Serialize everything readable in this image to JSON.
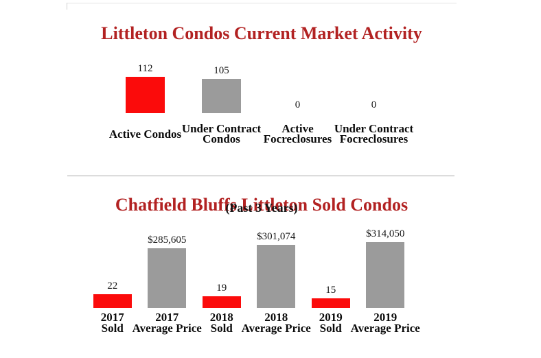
{
  "page": {
    "background": "#ffffff"
  },
  "dividers": {
    "top_line_color": "#e4e4e4",
    "section_line_color": "#a6a6a6"
  },
  "chart_data": [
    {
      "type": "bar",
      "title": "Littleton Condos Current Market Activity",
      "title_color": "#b22222",
      "categories": [
        "Active Condos",
        "Under Contract Condos",
        "Active Focreclosures",
        "Under Contract Focreclosures"
      ],
      "category_lines": [
        [
          "Active Condos"
        ],
        [
          "Under Contract",
          "Condos"
        ],
        [
          "Active",
          "Focreclosures"
        ],
        [
          "Under Contract",
          "Focreclosures"
        ]
      ],
      "values": [
        112,
        105,
        0,
        0
      ],
      "value_labels": [
        "112",
        "105",
        "0",
        "0"
      ],
      "bar_colors": [
        "#fb0b0b",
        "#9b9b9b",
        "#9b9b9b",
        "#9b9b9b"
      ],
      "ylim": [
        0,
        112
      ],
      "grid": false,
      "legend": false,
      "value_label_position": "above-bar"
    },
    {
      "type": "bar",
      "title": "Chatfield Bluffs Littleton Sold Condos",
      "subtitle": "(Past 3 Years)",
      "title_color": "#b22222",
      "categories": [
        "2017 Sold",
        "2017 Average Price",
        "2018 Sold",
        "2018 Average Price",
        "2019 Sold",
        "2019 Average Price"
      ],
      "category_lines": [
        [
          "2017",
          "Sold"
        ],
        [
          "2017",
          "Average Price"
        ],
        [
          "2018",
          "Sold"
        ],
        [
          "2018",
          "Average Price"
        ],
        [
          "2019",
          "Sold"
        ],
        [
          "2019",
          "Average Price"
        ]
      ],
      "values": [
        22,
        285605,
        19,
        301074,
        15,
        314050
      ],
      "value_labels": [
        "22",
        "$285,605",
        "19",
        "$301,074",
        "15",
        "$314,050"
      ],
      "bar_colors": [
        "#fb0b0b",
        "#9b9b9b",
        "#fb0b0b",
        "#9b9b9b",
        "#fb0b0b",
        "#9b9b9b"
      ],
      "series": [
        {
          "name": "Sold",
          "values": [
            22,
            19,
            15
          ],
          "color": "#fb0b0b"
        },
        {
          "name": "Average Price",
          "values": [
            285605,
            301074,
            314050
          ],
          "color": "#9b9b9b"
        }
      ],
      "grid": false,
      "legend": false,
      "value_label_position": "above-bar",
      "scaling_note": "Sold-count bars and price bars are drawn on independent scales"
    }
  ]
}
